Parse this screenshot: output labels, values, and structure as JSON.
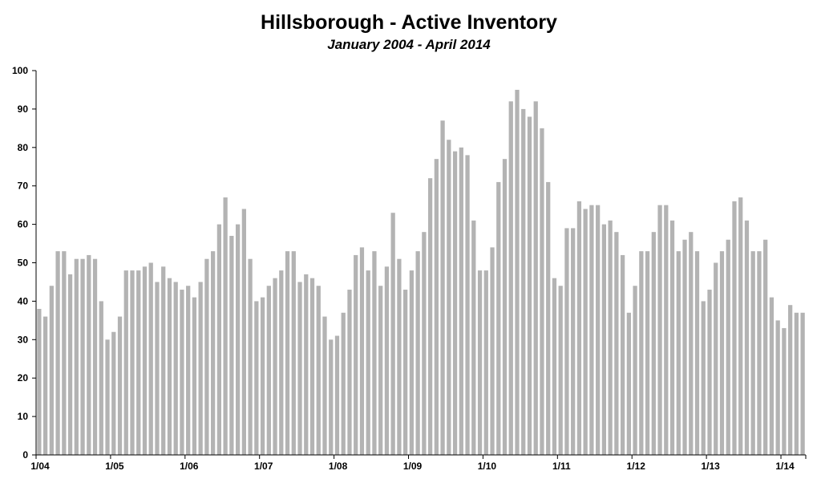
{
  "chart_data": {
    "type": "bar",
    "title": "Hillsborough - Active Inventory",
    "subtitle": "January 2004 - April 2014",
    "xlabel": "",
    "ylabel": "",
    "ylim": [
      0,
      100
    ],
    "y_ticks": [
      0,
      10,
      20,
      30,
      40,
      50,
      60,
      70,
      80,
      90,
      100
    ],
    "x_tick_labels": [
      "1/04",
      "1/05",
      "1/06",
      "1/07",
      "1/08",
      "1/09",
      "1/10",
      "1/11",
      "1/12",
      "1/13",
      "1/14"
    ],
    "grid": false,
    "bar_color": "#b3b3b3",
    "categories": [
      "1/04",
      "2/04",
      "3/04",
      "4/04",
      "5/04",
      "6/04",
      "7/04",
      "8/04",
      "9/04",
      "10/04",
      "11/04",
      "12/04",
      "1/05",
      "2/05",
      "3/05",
      "4/05",
      "5/05",
      "6/05",
      "7/05",
      "8/05",
      "9/05",
      "10/05",
      "11/05",
      "12/05",
      "1/06",
      "2/06",
      "3/06",
      "4/06",
      "5/06",
      "6/06",
      "7/06",
      "8/06",
      "9/06",
      "10/06",
      "11/06",
      "12/06",
      "1/07",
      "2/07",
      "3/07",
      "4/07",
      "5/07",
      "6/07",
      "7/07",
      "8/07",
      "9/07",
      "10/07",
      "11/07",
      "12/07",
      "1/08",
      "2/08",
      "3/08",
      "4/08",
      "5/08",
      "6/08",
      "7/08",
      "8/08",
      "9/08",
      "10/08",
      "11/08",
      "12/08",
      "1/09",
      "2/09",
      "3/09",
      "4/09",
      "5/09",
      "6/09",
      "7/09",
      "8/09",
      "9/09",
      "10/09",
      "11/09",
      "12/09",
      "1/10",
      "2/10",
      "3/10",
      "4/10",
      "5/10",
      "6/10",
      "7/10",
      "8/10",
      "9/10",
      "10/10",
      "11/10",
      "12/10",
      "1/11",
      "2/11",
      "3/11",
      "4/11",
      "5/11",
      "6/11",
      "7/11",
      "8/11",
      "9/11",
      "10/11",
      "11/11",
      "12/11",
      "1/12",
      "2/12",
      "3/12",
      "4/12",
      "5/12",
      "6/12",
      "7/12",
      "8/12",
      "9/12",
      "10/12",
      "11/12",
      "12/12",
      "1/13",
      "2/13",
      "3/13",
      "4/13",
      "5/13",
      "6/13",
      "7/13",
      "8/13",
      "9/13",
      "10/13",
      "11/13",
      "12/13",
      "1/14",
      "2/14",
      "3/14",
      "4/14"
    ],
    "values": [
      38,
      36,
      44,
      53,
      53,
      47,
      51,
      51,
      52,
      51,
      40,
      30,
      32,
      36,
      48,
      48,
      48,
      49,
      50,
      45,
      49,
      46,
      45,
      43,
      44,
      41,
      45,
      51,
      53,
      60,
      67,
      57,
      60,
      64,
      51,
      40,
      41,
      44,
      46,
      48,
      53,
      53,
      45,
      47,
      46,
      44,
      36,
      30,
      31,
      37,
      43,
      52,
      54,
      48,
      53,
      44,
      49,
      63,
      51,
      43,
      48,
      53,
      58,
      72,
      77,
      87,
      82,
      79,
      80,
      78,
      61,
      48,
      48,
      54,
      71,
      77,
      92,
      95,
      90,
      88,
      92,
      85,
      71,
      46,
      44,
      59,
      59,
      66,
      64,
      65,
      65,
      60,
      61,
      58,
      52,
      37,
      44,
      53,
      53,
      58,
      65,
      65,
      61,
      53,
      56,
      58,
      53,
      40,
      43,
      50,
      53,
      56,
      66,
      67,
      61,
      53,
      53,
      56,
      41,
      35,
      33,
      39,
      37,
      37
    ]
  }
}
